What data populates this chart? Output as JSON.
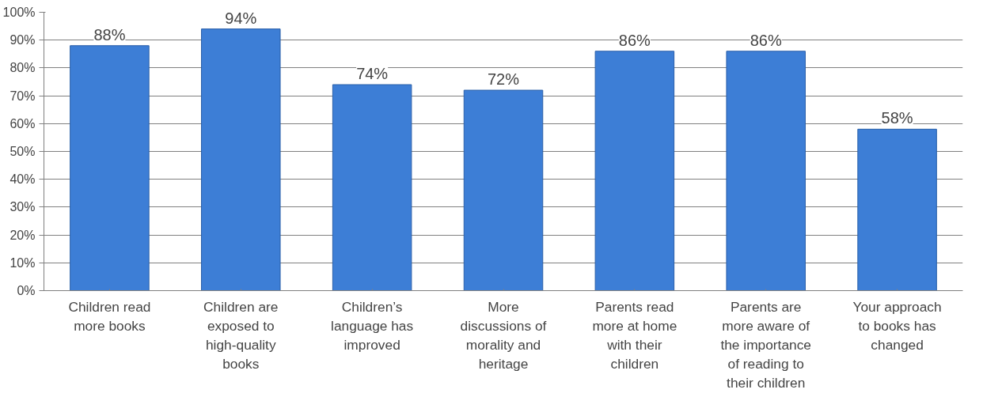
{
  "chart_data": {
    "type": "bar",
    "categories": [
      "Children read more books",
      "Children are exposed to high-quality books",
      "Children’s language has improved",
      "More discussions of morality and heritage",
      "Parents read more at home with their children",
      "Parents are more aware of the importance of reading to their children",
      "Your approach to books has changed"
    ],
    "values": [
      88,
      94,
      74,
      72,
      86,
      86,
      58
    ],
    "value_labels": [
      "88%",
      "94%",
      "74%",
      "72%",
      "86%",
      "86%",
      "58%"
    ],
    "color": "#3d7ed6",
    "ylim": [
      0,
      100
    ],
    "yticks": [
      {
        "value": 0,
        "label": "0%"
      },
      {
        "value": 10,
        "label": "10%"
      },
      {
        "value": 20,
        "label": "20%"
      },
      {
        "value": 30,
        "label": "30%"
      },
      {
        "value": 40,
        "label": "40%"
      },
      {
        "value": 50,
        "label": "50%"
      },
      {
        "value": 60,
        "label": "60%"
      },
      {
        "value": 70,
        "label": "70%"
      },
      {
        "value": 80,
        "label": "80%"
      },
      {
        "value": 90,
        "label": "90%"
      },
      {
        "value": 100,
        "label": "100%"
      }
    ],
    "grid": "y"
  }
}
